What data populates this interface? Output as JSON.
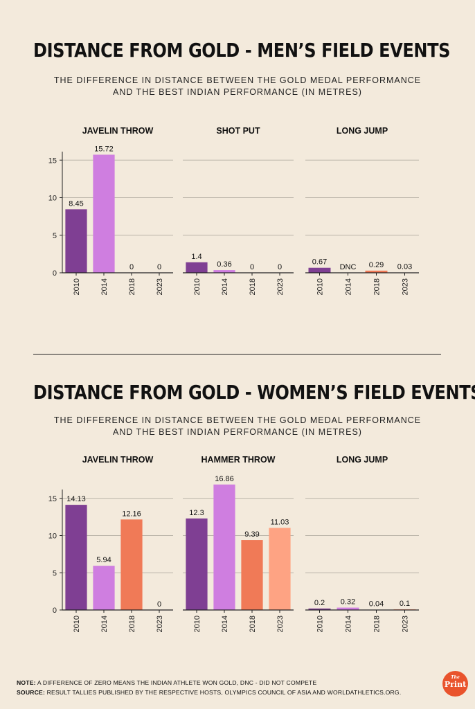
{
  "sections": [
    {
      "title": "DISTANCE FROM GOLD - MEN’S FIELD EVENTS",
      "subtitle_line1": "THE DIFFERENCE IN DISTANCE BETWEEN THE GOLD MEDAL PERFORMANCE",
      "subtitle_line2": "AND THE BEST INDIAN PERFORMANCE (IN METRES)"
    },
    {
      "title": "DISTANCE FROM GOLD - WOMEN’S FIELD EVENTS",
      "subtitle_line1": "THE DIFFERENCE IN DISTANCE BETWEEN THE GOLD MEDAL PERFORMANCE",
      "subtitle_line2": "AND THE BEST INDIAN PERFORMANCE (IN METRES)"
    }
  ],
  "colors": {
    "c2010": "#7f3f93",
    "c2014": "#cf7ee0",
    "c2018": "#f07a57",
    "c2023": "#fea383",
    "grid": "#b9b3a8",
    "axis": "#222222"
  },
  "chart_data": [
    {
      "type": "bar",
      "title": "JAVELIN THROW",
      "group": "men",
      "categories": [
        "2010",
        "2014",
        "2018",
        "2023"
      ],
      "values": [
        8.45,
        15.72,
        0,
        0
      ],
      "labels": [
        "8.45",
        "15.72",
        "0",
        "0"
      ],
      "yticks": [
        "0",
        "5",
        "10",
        "15"
      ],
      "ylim": [
        0,
        17.5
      ]
    },
    {
      "type": "bar",
      "title": "SHOT PUT",
      "group": "men",
      "categories": [
        "2010",
        "2014",
        "2018",
        "2023"
      ],
      "values": [
        1.4,
        0.36,
        0,
        0
      ],
      "labels": [
        "1.4",
        "0.36",
        "0",
        "0"
      ],
      "ylim": [
        0,
        17.5
      ]
    },
    {
      "type": "bar",
      "title": "LONG JUMP",
      "group": "men",
      "categories": [
        "2010",
        "2014",
        "2018",
        "2023"
      ],
      "values": [
        0.67,
        null,
        0.29,
        0.03
      ],
      "labels": [
        "0.67",
        "DNC",
        "0.29",
        "0.03"
      ],
      "ylim": [
        0,
        17.5
      ]
    },
    {
      "type": "bar",
      "title": "JAVELIN THROW",
      "group": "women",
      "categories": [
        "2010",
        "2014",
        "2018",
        "2023"
      ],
      "values": [
        14.13,
        5.94,
        12.16,
        0
      ],
      "labels": [
        "14.13",
        "5.94",
        "12.16",
        "0"
      ],
      "yticks": [
        "0",
        "5",
        "10",
        "15"
      ],
      "ylim": [
        0,
        17.5
      ]
    },
    {
      "type": "bar",
      "title": "HAMMER THROW",
      "group": "women",
      "categories": [
        "2010",
        "2014",
        "2018",
        "2023"
      ],
      "values": [
        12.3,
        16.86,
        9.39,
        11.03
      ],
      "labels": [
        "12.3",
        "16.86",
        "9.39",
        "11.03"
      ],
      "ylim": [
        0,
        17.5
      ]
    },
    {
      "type": "bar",
      "title": "LONG JUMP",
      "group": "women",
      "categories": [
        "2010",
        "2014",
        "2018",
        "2023"
      ],
      "values": [
        0.2,
        0.32,
        0.04,
        0.1
      ],
      "labels": [
        "0.2",
        "0.32",
        "0.04",
        "0.1"
      ],
      "ylim": [
        0,
        17.5
      ]
    }
  ],
  "notes": {
    "note_label": "NOTE:",
    "note_text": " A DIFFERENCE OF ZERO MEANS THE INDIAN ATHLETE WON GOLD, DNC - DID NOT COMPETE",
    "source_label": "SOURCE:",
    "source_text": " RESULT TALLIES PUBLISHED BY THE RESPECTIVE HOSTS, OLYMPICS COUNCIL OF ASIA AND WORLDATHLETICS.ORG."
  },
  "logo": {
    "line1": "The",
    "line2": "Print"
  }
}
